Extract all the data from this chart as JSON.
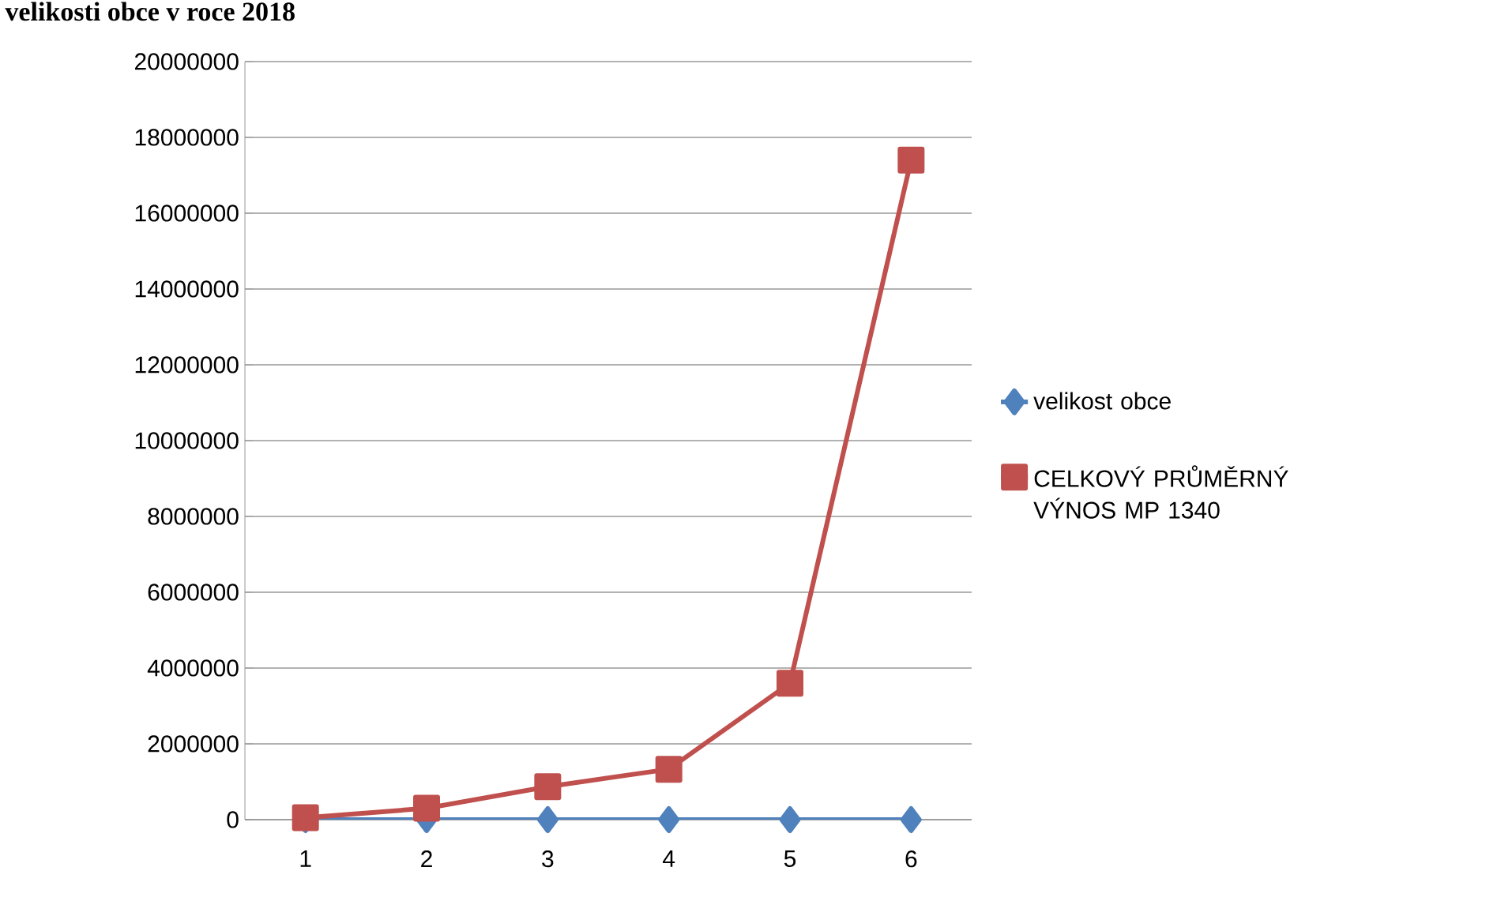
{
  "chart_data": {
    "type": "line",
    "title": "velikosti obce v roce 2018",
    "categories": [
      "1",
      "2",
      "3",
      "4",
      "5",
      "6"
    ],
    "series": [
      {
        "name": "velikost obce",
        "color": "#4f81bd",
        "marker": "diamond",
        "values": [
          0,
          0,
          0,
          0,
          0,
          0
        ]
      },
      {
        "name": "CELKOVÝ PRŮMĚRNÝ VÝNOS MP 1340",
        "color": "#c0504d",
        "marker": "square",
        "values": [
          50000,
          300000,
          870000,
          1330000,
          3600000,
          17400000
        ]
      }
    ],
    "ylim": [
      0,
      20000000
    ],
    "yticks": [
      0,
      2000000,
      4000000,
      6000000,
      8000000,
      10000000,
      12000000,
      14000000,
      16000000,
      18000000,
      20000000
    ],
    "grid": "y",
    "legend": "right",
    "line_style": "solid"
  }
}
